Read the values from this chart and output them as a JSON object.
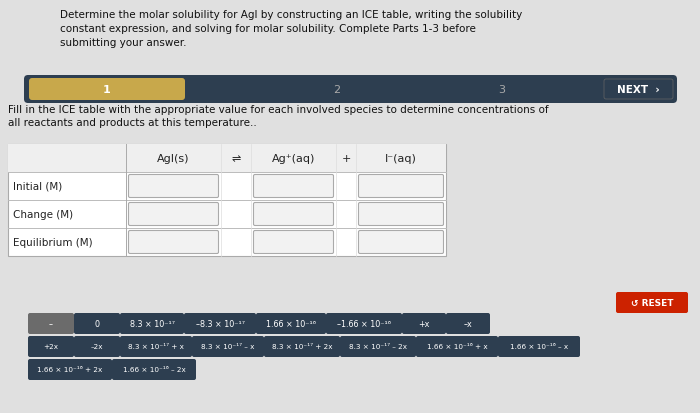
{
  "title_text": "Determine the molar solubility for AgI by constructing an ICE table, writing the solubility\nconstant expression, and solving for molar solubility. Complete Parts 1-3 before\nsubmitting your answer.",
  "subtitle": "Fill in the ICE table with the appropriate value for each involved species to determine concentrations of\nall reactants and products at this temperature..",
  "bg_color": "#e0e0e0",
  "white": "#ffffff",
  "dark_blue": "#2d3e50",
  "gold": "#c8a84b",
  "red_btn": "#cc2200",
  "gray_btn": "#6b6b6b",
  "ice_rows": [
    "Initial (M)",
    "Change (M)",
    "Equilibrium (M)"
  ],
  "ice_cols": [
    "AgI(s)",
    "⇌",
    "Ag⁺(aq)",
    "+",
    "I⁻(aq)"
  ],
  "row1_buttons": [
    "–",
    "0",
    "8.3 × 10⁻¹⁷",
    "–8.3 × 10⁻¹⁷",
    "1.66 × 10⁻¹⁶",
    "–1.66 × 10⁻¹⁶",
    "+x",
    "–x"
  ],
  "row2_buttons": [
    "+2x",
    "–2x",
    "8.3 × 10⁻¹⁷ + x",
    "8.3 × 10⁻¹⁷ – x",
    "8.3 × 10⁻¹⁷ + 2x",
    "8.3 × 10⁻¹⁷ – 2x",
    "1.66 × 10⁻¹⁶ + x",
    "1.66 × 10⁻¹⁶ – x"
  ],
  "row3_buttons": [
    "1.66 × 10⁻¹⁶ + 2x",
    "1.66 × 10⁻¹⁶ – 2x"
  ]
}
